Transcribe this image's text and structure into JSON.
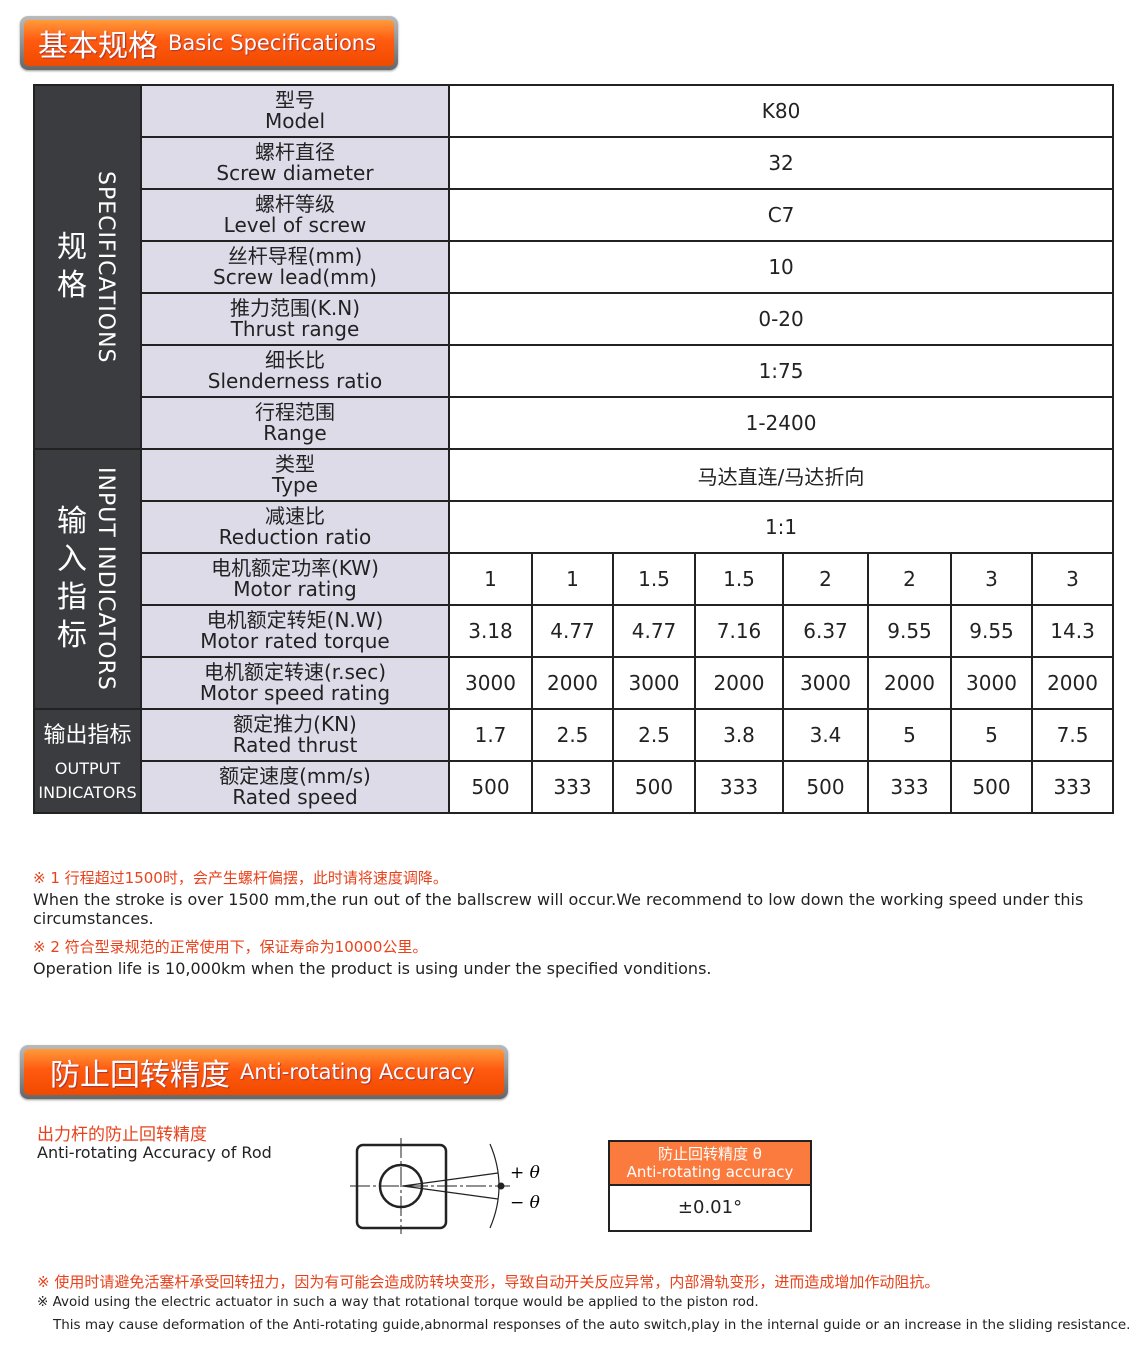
{
  "section1": {
    "title_zh": "基本规格",
    "title_en": "Basic Specifications"
  },
  "groups": {
    "spec": {
      "zh": [
        "规",
        "格"
      ],
      "en": "SPECIFICATIONS"
    },
    "input": {
      "zh": [
        "输",
        "入",
        "指",
        "标"
      ],
      "en": "INPUT INDICATORS"
    },
    "output": {
      "zh": "输出指标",
      "en1": "OUTPUT",
      "en2": "INDICATORS"
    }
  },
  "rows": [
    {
      "zh": "型号",
      "en": "Model",
      "value": "K80"
    },
    {
      "zh": "螺杆直径",
      "en": "Screw diameter",
      "value": "32"
    },
    {
      "zh": "螺杆等级",
      "en": "Level of screw",
      "value": "C7"
    },
    {
      "zh": "丝杆导程(mm)",
      "en": "Screw lead(mm)",
      "value": "10"
    },
    {
      "zh": "推力范围(K.N)",
      "en": "Thrust range",
      "value": "0-20"
    },
    {
      "zh": "细长比",
      "en": "Slenderness ratio",
      "value": "1:75"
    },
    {
      "zh": "行程范围",
      "en": "Range",
      "value": "1-2400"
    },
    {
      "zh": "类型",
      "en": "Type",
      "value": "马达直连/马达折向"
    },
    {
      "zh": "减速比",
      "en": "Reduction ratio",
      "value": "1:1"
    },
    {
      "zh": "电机额定功率(KW)",
      "en": "Motor rating",
      "values": [
        "1",
        "1",
        "1.5",
        "1.5",
        "2",
        "2",
        "3",
        "3"
      ]
    },
    {
      "zh": "电机额定转矩(N.W)",
      "en": "Motor rated torque",
      "values": [
        "3.18",
        "4.77",
        "4.77",
        "7.16",
        "6.37",
        "9.55",
        "9.55",
        "14.3"
      ]
    },
    {
      "zh": "电机额定转速(r.sec)",
      "en": "Motor speed rating",
      "values": [
        "3000",
        "2000",
        "3000",
        "2000",
        "3000",
        "2000",
        "3000",
        "2000"
      ]
    },
    {
      "zh": "额定推力(KN)",
      "en": "Rated thrust",
      "values": [
        "1.7",
        "2.5",
        "2.5",
        "3.8",
        "3.4",
        "5",
        "5",
        "7.5"
      ]
    },
    {
      "zh": "额定速度(mm/s)",
      "en": "Rated speed",
      "values": [
        "500",
        "333",
        "500",
        "333",
        "500",
        "333",
        "500",
        "333"
      ]
    }
  ],
  "notes": {
    "n1_zh": "※ 1 行程超过1500时，会产生螺杆偏摆，此时请将速度调降。",
    "n1_en": "When the stroke is over 1500 mm,the run out of the ballscrew will occur.We recommend to low down the working speed under this circumstances.",
    "n2_zh": "※ 2 符合型录规范的正常使用下，保证寿命为10000公里。",
    "n2_en": "Operation life is 10,000km when the product is using under the specified vonditions."
  },
  "section2": {
    "title_zh": "防止回转精度",
    "title_en": "Anti-rotating Accuracy",
    "sub_zh": "出力杆的防止回转精度",
    "sub_en": "Anti-rotating Accuracy of Rod",
    "plus": "+ θ",
    "minus": "− θ",
    "table_zh": "防止回转精度 θ",
    "table_en": "Anti-rotating accuracy",
    "table_value": "±0.01°"
  },
  "warning": {
    "zh": "※ 使用时请避免活塞杆承受回转扭力，因为有可能会造成防转块变形，导致自动开关反应异常，内部滑轨变形，进而造成增加作动阻抗。",
    "en1": "※ Avoid using the electric actuator in such a way that rotational torque would be applied to the piston rod.",
    "en2": "This may cause deformation of the Anti-rotating guide,abnormal responses of the auto switch,play in the internal guide or an increase in the sliding resistance."
  },
  "colors": {
    "accent": "#ff5a10",
    "note_red": "#e8421c",
    "group_bg": "#3a3c3f",
    "label_bg": "#dedbe9"
  }
}
